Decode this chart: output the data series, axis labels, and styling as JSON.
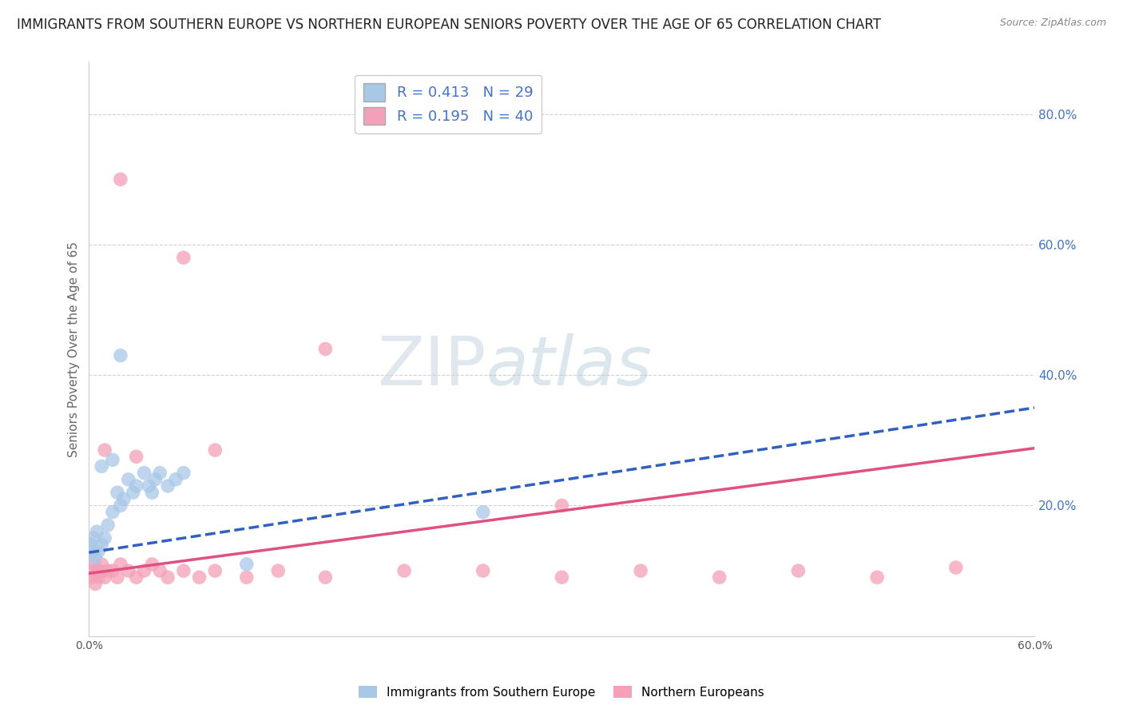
{
  "title": "IMMIGRANTS FROM SOUTHERN EUROPE VS NORTHERN EUROPEAN SENIORS POVERTY OVER THE AGE OF 65 CORRELATION CHART",
  "source": "Source: ZipAtlas.com",
  "ylabel": "Seniors Poverty Over the Age of 65",
  "xlim": [
    0.0,
    0.6
  ],
  "ylim": [
    0.0,
    0.88
  ],
  "blue_R": 0.413,
  "blue_N": 29,
  "pink_R": 0.195,
  "pink_N": 40,
  "blue_color": "#a8c8e8",
  "pink_color": "#f4a0b8",
  "blue_line_color": "#3060c0",
  "pink_line_color": "#e05080",
  "blue_scatter": [
    [
      0.001,
      0.14
    ],
    [
      0.002,
      0.13
    ],
    [
      0.003,
      0.15
    ],
    [
      0.004,
      0.12
    ],
    [
      0.005,
      0.16
    ],
    [
      0.006,
      0.13
    ],
    [
      0.008,
      0.14
    ],
    [
      0.01,
      0.15
    ],
    [
      0.012,
      0.17
    ],
    [
      0.015,
      0.19
    ],
    [
      0.018,
      0.22
    ],
    [
      0.02,
      0.2
    ],
    [
      0.022,
      0.21
    ],
    [
      0.025,
      0.24
    ],
    [
      0.028,
      0.22
    ],
    [
      0.03,
      0.23
    ],
    [
      0.035,
      0.25
    ],
    [
      0.038,
      0.23
    ],
    [
      0.04,
      0.22
    ],
    [
      0.042,
      0.24
    ],
    [
      0.045,
      0.25
    ],
    [
      0.05,
      0.23
    ],
    [
      0.055,
      0.24
    ],
    [
      0.06,
      0.25
    ],
    [
      0.008,
      0.26
    ],
    [
      0.015,
      0.27
    ],
    [
      0.25,
      0.19
    ],
    [
      0.1,
      0.11
    ],
    [
      0.02,
      0.43
    ]
  ],
  "pink_scatter": [
    [
      0.001,
      0.1
    ],
    [
      0.002,
      0.09
    ],
    [
      0.003,
      0.11
    ],
    [
      0.004,
      0.08
    ],
    [
      0.005,
      0.1
    ],
    [
      0.006,
      0.09
    ],
    [
      0.007,
      0.1
    ],
    [
      0.008,
      0.11
    ],
    [
      0.01,
      0.09
    ],
    [
      0.012,
      0.1
    ],
    [
      0.015,
      0.1
    ],
    [
      0.018,
      0.09
    ],
    [
      0.02,
      0.11
    ],
    [
      0.025,
      0.1
    ],
    [
      0.03,
      0.09
    ],
    [
      0.035,
      0.1
    ],
    [
      0.04,
      0.11
    ],
    [
      0.045,
      0.1
    ],
    [
      0.05,
      0.09
    ],
    [
      0.06,
      0.1
    ],
    [
      0.07,
      0.09
    ],
    [
      0.08,
      0.1
    ],
    [
      0.1,
      0.09
    ],
    [
      0.12,
      0.1
    ],
    [
      0.15,
      0.09
    ],
    [
      0.2,
      0.1
    ],
    [
      0.25,
      0.1
    ],
    [
      0.3,
      0.09
    ],
    [
      0.35,
      0.1
    ],
    [
      0.4,
      0.09
    ],
    [
      0.45,
      0.1
    ],
    [
      0.5,
      0.09
    ],
    [
      0.02,
      0.7
    ],
    [
      0.06,
      0.58
    ],
    [
      0.15,
      0.44
    ],
    [
      0.3,
      0.2
    ],
    [
      0.08,
      0.285
    ],
    [
      0.03,
      0.275
    ],
    [
      0.55,
      0.105
    ],
    [
      0.01,
      0.285
    ]
  ],
  "watermark_zip": "ZIP",
  "watermark_atlas": "atlas",
  "background_color": "#ffffff",
  "grid_color": "#cccccc",
  "title_fontsize": 12,
  "axis_label_fontsize": 11,
  "legend_label_blue": "Immigrants from Southern Europe",
  "legend_label_pink": "Northern Europeans"
}
